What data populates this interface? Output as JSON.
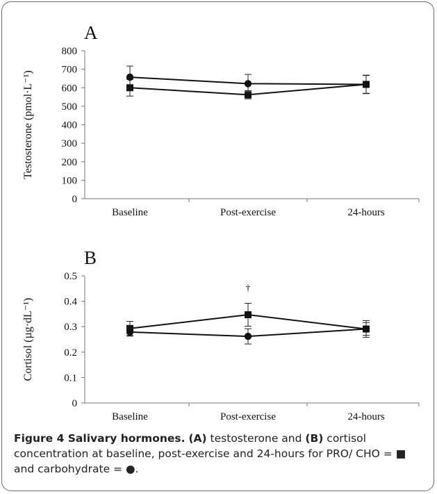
{
  "chart_data": [
    {
      "panel_label": "A",
      "type": "line",
      "categories": [
        "Baseline",
        "Post-exercise",
        "24-hours"
      ],
      "ylabel": "Testosterone (pmol·L⁻¹)",
      "ylim": [
        0,
        800
      ],
      "yticks": [
        0,
        100,
        200,
        300,
        400,
        500,
        600,
        700,
        800
      ],
      "series": [
        {
          "marker": "square",
          "values": [
            600,
            562,
            618
          ],
          "errors": [
            45,
            22,
            48
          ]
        },
        {
          "marker": "circle",
          "values": [
            657,
            622,
            618
          ],
          "errors": [
            60,
            50,
            50
          ]
        }
      ],
      "annotations": []
    },
    {
      "panel_label": "B",
      "type": "line",
      "categories": [
        "Baseline",
        "Post-exercise",
        "24-hours"
      ],
      "ylabel": "Cortisol (µg·dL⁻¹)",
      "ylim": [
        0,
        0.5
      ],
      "yticks": [
        0,
        0.1,
        0.2,
        0.3,
        0.4,
        0.5
      ],
      "series": [
        {
          "marker": "square",
          "values": [
            0.293,
            0.347,
            0.291
          ],
          "errors": [
            0.028,
            0.045,
            0.033
          ]
        },
        {
          "marker": "circle",
          "values": [
            0.279,
            0.262,
            0.291
          ],
          "errors": [
            0.016,
            0.03,
            0.025
          ]
        }
      ],
      "annotations": [
        {
          "category": "Post-exercise",
          "text": "†"
        }
      ]
    }
  ],
  "caption": {
    "bold": "Figure 4 Salivary hormones.",
    "seg1_bold": "(A)",
    "seg1": " testosterone and ",
    "seg2_bold": "(B)",
    "seg2": " cortisol concentration at baseline, post-exercise and 24-hours for PRO/ CHO = ■ and carbohydrate = ●."
  }
}
